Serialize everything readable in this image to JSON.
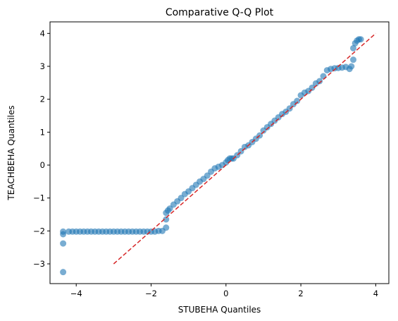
{
  "chart_data": {
    "type": "scatter",
    "title": "Comparative Q-Q Plot",
    "xlabel": "STUBEHA Quantiles",
    "ylabel": "TEACHBEHA Quantiles",
    "xlim": [
      -4.7,
      4.35
    ],
    "ylim": [
      -3.6,
      4.35
    ],
    "xticks": [
      -4,
      -2,
      0,
      2,
      4
    ],
    "xtick_labels": [
      "−4",
      "−2",
      "0",
      "2",
      "4"
    ],
    "yticks": [
      -3,
      -2,
      -1,
      0,
      1,
      2,
      3,
      4
    ],
    "ytick_labels": [
      "−3",
      "−2",
      "−1",
      "0",
      "1",
      "2",
      "3",
      "4"
    ],
    "grid": false,
    "legend": "none",
    "point_color": "#1f77b4",
    "line_color": "#d62728",
    "reference_line": {
      "x": [
        -3,
        4
      ],
      "y": [
        -3,
        4
      ],
      "style": "dashed"
    },
    "series": [
      {
        "x": [
          -4.35,
          -4.35,
          -4.35,
          -4.35,
          -4.2,
          -4.1,
          -4.0,
          -3.9,
          -3.8,
          -3.7,
          -3.6,
          -3.5,
          -3.4,
          -3.3,
          -3.2,
          -3.1,
          -3.0,
          -2.9,
          -2.8,
          -2.7,
          -2.6,
          -2.5,
          -2.4,
          -2.3,
          -2.2,
          -2.1,
          -2.0,
          -1.9,
          -1.8,
          -1.7,
          -1.6,
          -1.6,
          -1.6,
          -1.55,
          -1.5,
          -1.4,
          -1.3,
          -1.2,
          -1.1,
          -1.0,
          -0.9,
          -0.8,
          -0.7,
          -0.6,
          -0.5,
          -0.4,
          -0.3,
          -0.2,
          -0.1,
          0.0,
          0.05,
          0.1,
          0.15,
          0.2,
          0.3,
          0.4,
          0.5,
          0.6,
          0.7,
          0.8,
          0.9,
          1.0,
          1.1,
          1.2,
          1.3,
          1.4,
          1.5,
          1.6,
          1.7,
          1.8,
          1.9,
          2.0,
          2.1,
          2.2,
          2.3,
          2.4,
          2.5,
          2.6,
          2.7,
          2.8,
          2.9,
          3.0,
          3.1,
          3.2,
          3.3,
          3.35,
          3.4,
          3.4,
          3.45,
          3.5,
          3.55,
          3.6
        ],
        "y": [
          -3.25,
          -2.38,
          -2.1,
          -2.02,
          -2.02,
          -2.02,
          -2.02,
          -2.02,
          -2.02,
          -2.02,
          -2.02,
          -2.02,
          -2.02,
          -2.02,
          -2.02,
          -2.02,
          -2.02,
          -2.02,
          -2.02,
          -2.02,
          -2.02,
          -2.02,
          -2.02,
          -2.02,
          -2.02,
          -2.02,
          -2.02,
          -2.02,
          -2.0,
          -2.0,
          -1.9,
          -1.65,
          -1.45,
          -1.38,
          -1.32,
          -1.2,
          -1.1,
          -1.0,
          -0.88,
          -0.8,
          -0.7,
          -0.6,
          -0.5,
          -0.42,
          -0.32,
          -0.2,
          -0.1,
          -0.05,
          0.0,
          0.08,
          0.15,
          0.2,
          0.2,
          0.2,
          0.3,
          0.42,
          0.55,
          0.6,
          0.7,
          0.8,
          0.9,
          1.05,
          1.15,
          1.25,
          1.35,
          1.45,
          1.55,
          1.62,
          1.72,
          1.85,
          1.95,
          2.12,
          2.2,
          2.25,
          2.35,
          2.48,
          2.55,
          2.7,
          2.88,
          2.92,
          2.94,
          2.95,
          2.96,
          2.98,
          2.92,
          3.0,
          3.2,
          3.55,
          3.7,
          3.78,
          3.82,
          3.82
        ]
      }
    ]
  }
}
